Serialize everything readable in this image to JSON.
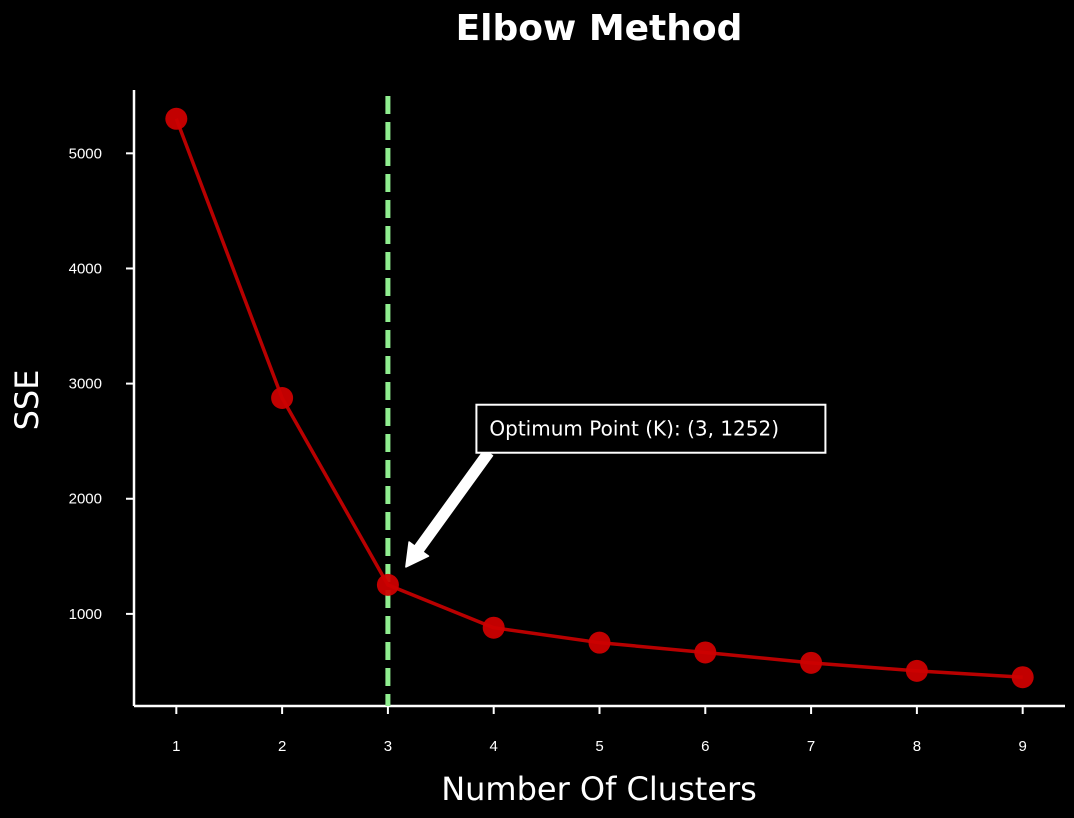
{
  "chart_data": {
    "type": "line",
    "title": "Elbow Method",
    "xlabel": "Number Of Clusters",
    "ylabel": "SSE",
    "x": [
      1,
      2,
      3,
      4,
      5,
      6,
      7,
      8,
      9
    ],
    "series": [
      {
        "values": [
          5300,
          2875,
          1252,
          880,
          750,
          665,
          575,
          505,
          450
        ],
        "color": "#cc0000",
        "marker": "circle"
      }
    ],
    "xticks": [
      1,
      2,
      3,
      4,
      5,
      6,
      7,
      8,
      9
    ],
    "yticks": [
      1000,
      2000,
      3000,
      4000,
      5000
    ],
    "xlim": [
      0.6,
      9.4
    ],
    "ylim": [
      200,
      5550
    ],
    "grid": false,
    "reference_line": {
      "orientation": "vertical",
      "x": 3,
      "style": "dashed",
      "color": "#90ee90"
    },
    "annotation": {
      "text": "Optimum Point (K): (3, 1252)",
      "point": [
        3,
        1252
      ],
      "text_position": [
        3.95,
        2530
      ],
      "arrow_color": "#ffffff"
    },
    "background": "#000000"
  }
}
